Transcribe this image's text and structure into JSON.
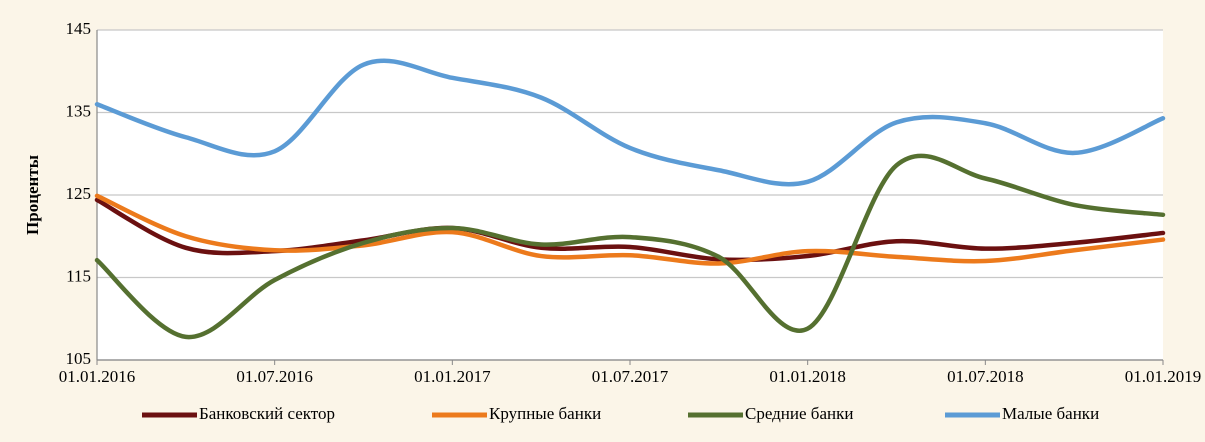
{
  "chart_data": {
    "type": "line",
    "y_label": "Проценты",
    "categories": [
      "01.01.2016",
      null,
      "01.07.2016",
      null,
      "01.01.2017",
      null,
      "01.07.2017",
      null,
      "01.01.2018",
      null,
      "01.07.2018",
      null,
      "01.01.2019"
    ],
    "series": [
      {
        "name": "Банковский сектор",
        "color": "#6b1010",
        "values": [
          124.4,
          118.6,
          118.2,
          119.5,
          121,
          118.6,
          118.7,
          117.2,
          117.6,
          119.4,
          118.5,
          119.2,
          120.4
        ]
      },
      {
        "name": "Крупные банки",
        "color": "#ec7a1c",
        "values": [
          124.9,
          120,
          118.3,
          118.9,
          120.5,
          117.6,
          117.7,
          116.7,
          118.2,
          117.5,
          117,
          118.3,
          119.6
        ]
      },
      {
        "name": "Средние банки",
        "color": "#557030",
        "values": [
          117.1,
          107.8,
          114.7,
          119.2,
          121,
          119,
          119.9,
          117.5,
          108.8,
          128.6,
          127,
          123.8,
          122.6
        ]
      },
      {
        "name": "Малые банки",
        "color": "#5b9bd5",
        "values": [
          136,
          132,
          130.3,
          140.8,
          139.2,
          136.8,
          130.7,
          128,
          126.6,
          133.8,
          133.7,
          130.1,
          134.3
        ]
      }
    ],
    "ylim": [
      105,
      145
    ],
    "yticks": [
      105,
      115,
      125,
      135,
      145
    ],
    "grid": true
  }
}
